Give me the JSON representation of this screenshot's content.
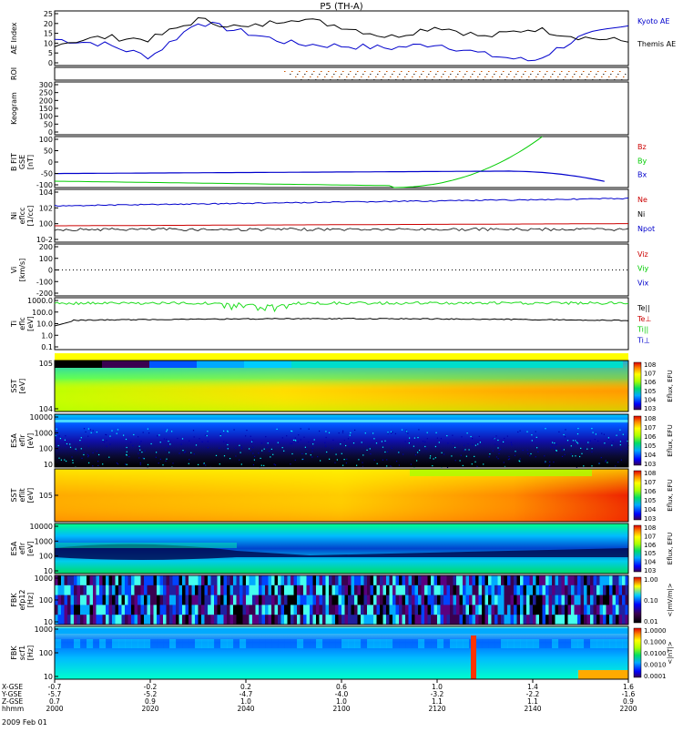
{
  "title": "P5 (TH-A)",
  "date_label": "2009 Feb 01",
  "xaxis": {
    "rows": [
      {
        "label": "X-GSE",
        "values": [
          "-0.7",
          "-0.2",
          "0.2",
          "0.6",
          "1.0",
          "1.4",
          "1.6"
        ]
      },
      {
        "label": "Y-GSE",
        "values": [
          "-5.7",
          "-5.2",
          "-4.7",
          "-4.0",
          "-3.2",
          "-2.2",
          "-1.6"
        ]
      },
      {
        "label": "Z-GSE",
        "values": [
          "0.7",
          "0.9",
          "1.0",
          "1.0",
          "1.1",
          "1.1",
          "0.9"
        ]
      },
      {
        "label": "hhmm",
        "values": [
          "2000",
          "2020",
          "2040",
          "2100",
          "2120",
          "2140",
          "2200"
        ]
      }
    ]
  },
  "chart_data": [
    {
      "type": "line",
      "id": "ae",
      "ylabel": "AE Index",
      "ylim": [
        0,
        25
      ],
      "yticks": [
        "0",
        "5",
        "10",
        "15",
        "20",
        "25"
      ],
      "x": [
        0,
        10,
        20,
        30,
        40,
        50,
        60,
        70,
        80,
        90,
        100,
        110,
        120
      ],
      "series": [
        {
          "name": "Kyoto AE",
          "color": "#0000cc",
          "values": [
            12,
            10,
            4,
            20,
            15,
            10,
            9,
            8,
            10,
            5,
            2,
            13,
            18
          ]
        },
        {
          "name": "Themis AE",
          "color": "#000000",
          "values": [
            10,
            13,
            12,
            21,
            17,
            22,
            18,
            13,
            18,
            13,
            17,
            13,
            11
          ]
        }
      ]
    },
    {
      "type": "line",
      "id": "roi",
      "ylabel": "ROI",
      "note": "dotted markers",
      "yticks": []
    },
    {
      "type": "line",
      "id": "keogram",
      "ylabel": "Keogram",
      "ylim": [
        0,
        300
      ],
      "yticks": [
        "0",
        "50",
        "100",
        "150",
        "200",
        "250",
        "300"
      ]
    },
    {
      "type": "line",
      "id": "bfit",
      "ylabel": "B FIT",
      "ylabel2": "GSE",
      "ylabel3": "[nT]",
      "ylim": [
        -100,
        100
      ],
      "yticks": [
        "-100",
        "-50",
        "0",
        "50",
        "100"
      ],
      "series": [
        {
          "name": "Bz",
          "color": "#cc0000"
        },
        {
          "name": "By",
          "color": "#00cc00"
        },
        {
          "name": "Bx",
          "color": "#0000cc"
        }
      ]
    },
    {
      "type": "line",
      "id": "density",
      "ylabel": "Ni",
      "ylabel2": "eflcc",
      "ylabel3": "[1/cc]",
      "yticks": [
        "10^-2",
        "10^0",
        "10^2",
        "10^4"
      ],
      "series": [
        {
          "name": "Ne",
          "color": "#cc0000"
        },
        {
          "name": "Ni",
          "color": "#000000"
        },
        {
          "name": "Npot",
          "color": "#0000cc"
        }
      ]
    },
    {
      "type": "line",
      "id": "velocity",
      "ylabel": "Vi",
      "ylabel2": "[km/s]",
      "ylim": [
        -300,
        300
      ],
      "yticks": [
        "-200",
        "-100",
        "0",
        "100",
        "200"
      ],
      "series": [
        {
          "name": "Viz",
          "color": "#cc0000"
        },
        {
          "name": "Viy",
          "color": "#00cc00"
        },
        {
          "name": "Vix",
          "color": "#0000cc"
        }
      ]
    },
    {
      "type": "line",
      "id": "temperature",
      "ylabel": "Ti",
      "ylabel2": "eflc",
      "ylabel3": "[eV]",
      "yticks": [
        "0.1",
        "1.0",
        "10.0",
        "100.0",
        "1000.0"
      ],
      "series": [
        {
          "name": "Te||",
          "color": "#000000"
        },
        {
          "name": "Te⊥",
          "color": "#cc0000"
        },
        {
          "name": "Ti||",
          "color": "#00cc00"
        },
        {
          "name": "Ti⊥",
          "color": "#0000cc"
        }
      ]
    },
    {
      "type": "heatmap",
      "id": "sst_e",
      "ylabel": "SST",
      "ylabel2": "[eV]",
      "yticks": [
        "10^4",
        "10^5"
      ],
      "colorbar_label": "Eflux, EFU",
      "colorbar_ticks": [
        "10^3",
        "10^4",
        "10^5",
        "10^6",
        "10^7",
        "10^8"
      ]
    },
    {
      "type": "heatmap",
      "id": "esa_e",
      "ylabel": "ESA",
      "ylabel2": "eflr",
      "ylabel3": "[eV]",
      "yticks": [
        "10",
        "100",
        "1000",
        "10000"
      ],
      "colorbar_label": "Eflux, EFU",
      "colorbar_ticks": [
        "10^3",
        "10^4",
        "10^5",
        "10^6",
        "10^7",
        "10^8"
      ]
    },
    {
      "type": "heatmap",
      "id": "sst_i",
      "ylabel": "SST",
      "ylabel2": "eflit",
      "ylabel3": "[eV]",
      "yticks": [
        "10^5"
      ],
      "colorbar_label": "Eflux, EFU",
      "colorbar_ticks": [
        "10^3",
        "10^4",
        "10^5",
        "10^6",
        "10^7",
        "10^8"
      ]
    },
    {
      "type": "heatmap",
      "id": "esa_i",
      "ylabel": "ESA",
      "ylabel2": "eflr",
      "ylabel3": "[eV]",
      "yticks": [
        "10",
        "100",
        "1000",
        "10000"
      ],
      "colorbar_label": "Eflux, EFU",
      "colorbar_ticks": [
        "10^3",
        "10^4",
        "10^5",
        "10^6",
        "10^7",
        "10^8"
      ]
    },
    {
      "type": "heatmap",
      "id": "fbk1",
      "ylabel": "FBK",
      "ylabel2": "efp12",
      "ylabel3": "[Hz]",
      "yticks": [
        "10",
        "100",
        "1000"
      ],
      "colorbar_label": "<|mV/m|>",
      "colorbar_ticks": [
        "0.01",
        "0.10",
        "1.00"
      ]
    },
    {
      "type": "heatmap",
      "id": "fbk2",
      "ylabel": "FBK",
      "ylabel2": "scf1",
      "ylabel3": "[Hz]",
      "yticks": [
        "10",
        "100",
        "1000"
      ],
      "colorbar_label": "<|nT|>",
      "colorbar_ticks": [
        "0.0001",
        "0.0010",
        "0.0100",
        "0.1000",
        "1.0000"
      ]
    }
  ]
}
